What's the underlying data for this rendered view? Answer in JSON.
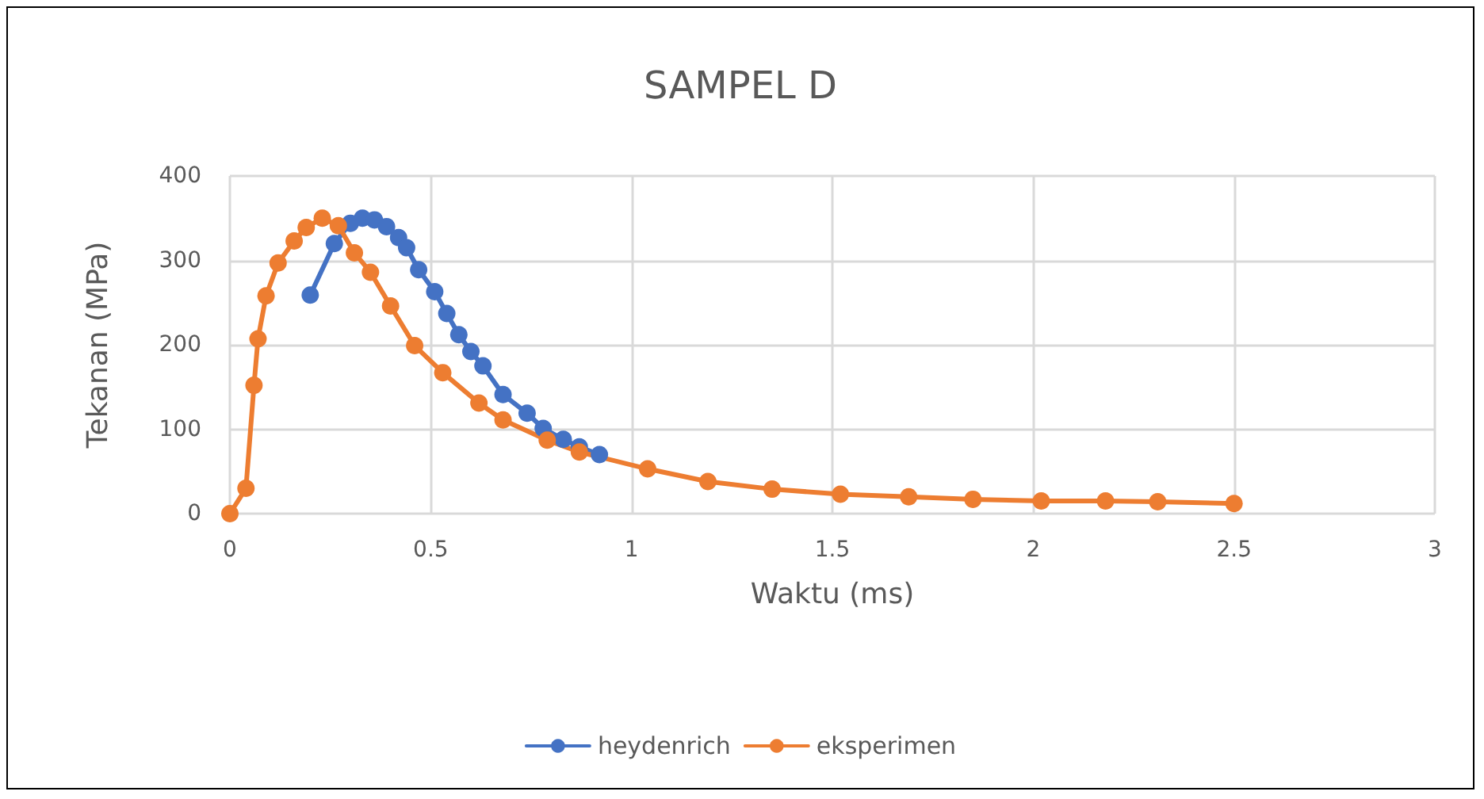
{
  "chart_data": {
    "type": "line",
    "title": "SAMPEL D",
    "xlabel": "Waktu (ms)",
    "ylabel": "Tekanan (MPa)",
    "xlim": [
      0,
      3
    ],
    "xticks": [
      0,
      0.5,
      1,
      1.5,
      2,
      2.5,
      3
    ],
    "ylim": [
      0,
      400
    ],
    "yticks": [
      0,
      100,
      200,
      300,
      400
    ],
    "grid": true,
    "legend": "bottom",
    "marker": "circle",
    "line_style": "solid",
    "series": [
      {
        "name": "heydenrich",
        "color": "#4472c4",
        "x": [
          0.2,
          0.26,
          0.3,
          0.33,
          0.36,
          0.39,
          0.42,
          0.44,
          0.47,
          0.51,
          0.54,
          0.57,
          0.6,
          0.63,
          0.68,
          0.74,
          0.78,
          0.83,
          0.87,
          0.92
        ],
        "values": [
          259,
          320,
          344,
          350,
          348,
          340,
          327,
          315,
          289,
          263,
          237,
          212,
          192,
          175,
          141,
          119,
          101,
          88,
          79,
          70
        ]
      },
      {
        "name": "eksperimen",
        "color": "#ed7d31",
        "x": [
          0,
          0.04,
          0.06,
          0.07,
          0.09,
          0.12,
          0.16,
          0.19,
          0.23,
          0.27,
          0.31,
          0.35,
          0.4,
          0.46,
          0.53,
          0.62,
          0.68,
          0.79,
          0.87,
          1.04,
          1.19,
          1.35,
          1.52,
          1.69,
          1.85,
          2.02,
          2.18,
          2.31,
          2.5
        ],
        "values": [
          0,
          30,
          152,
          207,
          258,
          297,
          323,
          339,
          350,
          341,
          309,
          286,
          246,
          199,
          167,
          131,
          111,
          87,
          73,
          53,
          38,
          29,
          23,
          20,
          17,
          15,
          15,
          14,
          12
        ]
      }
    ]
  }
}
